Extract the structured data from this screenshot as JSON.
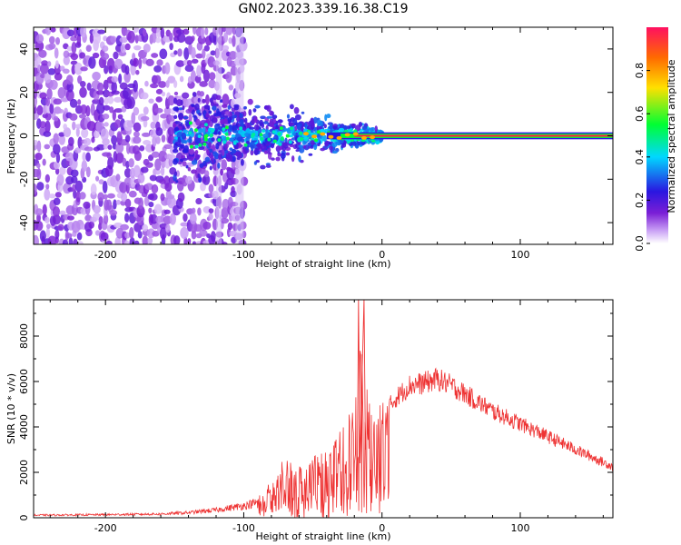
{
  "title": "GN02.2023.339.16.38.C19",
  "chart_data": [
    {
      "type": "heatmap",
      "panel": "spectrogram",
      "xlabel": "Height of straight line (km)",
      "ylabel": "Frequency (Hz)",
      "xlim": [
        -252,
        167
      ],
      "ylim": [
        -50,
        50
      ],
      "xticks": [
        -200,
        -100,
        0,
        100
      ],
      "yticks": [
        -40,
        -20,
        0,
        20,
        40
      ],
      "colorbar": {
        "label": "Normalized spectral amplitude",
        "range": [
          0,
          1
        ],
        "ticks": [
          0.0,
          0.2,
          0.4,
          0.6,
          0.8
        ],
        "colormap": [
          "#ffffff",
          "#c9a0f5",
          "#7b1fd6",
          "#2a16e0",
          "#00d8ff",
          "#00ff33",
          "#ffe000",
          "#ff6a00",
          "#ff1060"
        ]
      },
      "noise_region_x": [
        -252,
        -100
      ],
      "signal_line": {
        "frequency": 0,
        "x_start": -20,
        "x_end": 167,
        "amplitude": 0.9
      }
    },
    {
      "type": "line",
      "panel": "snr",
      "xlabel": "Height of straight line (km)",
      "ylabel": "SNR (10 * v/v)",
      "xlim": [
        -252,
        167
      ],
      "ylim": [
        0,
        9600
      ],
      "xticks": [
        -200,
        -100,
        0,
        100
      ],
      "yticks": [
        0,
        2000,
        4000,
        6000,
        8000
      ],
      "color": "#ee3333",
      "x": [
        -252,
        -200,
        -160,
        -140,
        -120,
        -100,
        -90,
        -80,
        -70,
        -60,
        -50,
        -40,
        -30,
        -20,
        -15,
        -10,
        -5,
        0,
        10,
        20,
        30,
        40,
        50,
        60,
        80,
        100,
        120,
        140,
        160,
        167
      ],
      "y": [
        150,
        180,
        220,
        300,
        450,
        700,
        900,
        1500,
        2500,
        2200,
        2800,
        2600,
        3500,
        5000,
        7500,
        5000,
        4200,
        4800,
        5600,
        6200,
        6300,
        6500,
        6200,
        5800,
        5000,
        4400,
        3800,
        3200,
        2600,
        2400
      ]
    }
  ]
}
